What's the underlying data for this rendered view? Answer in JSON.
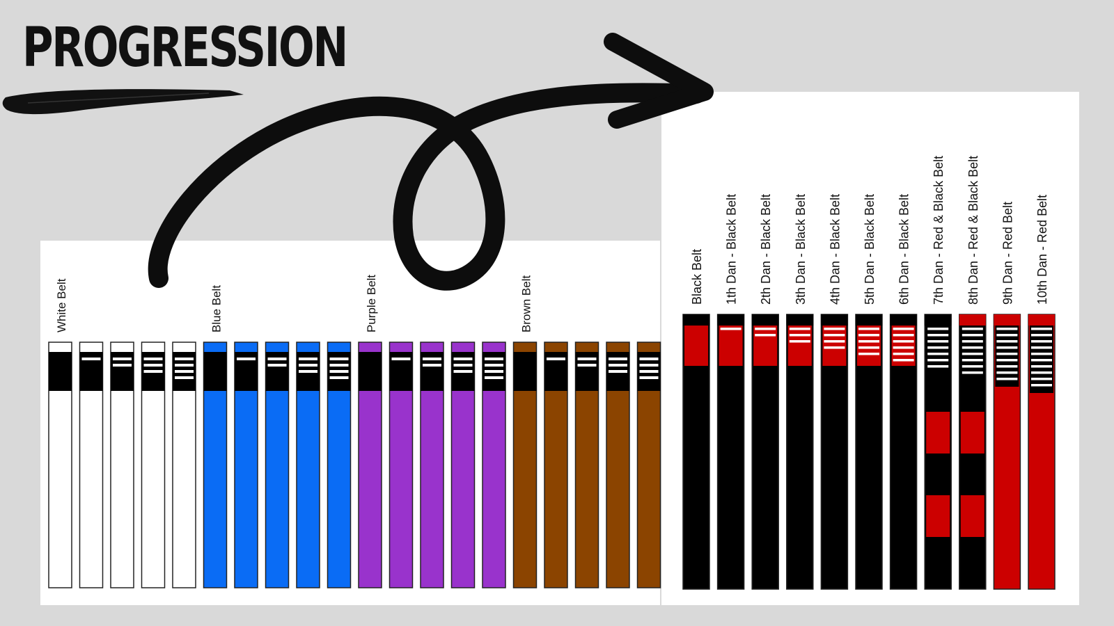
{
  "title": "PROGRESSION",
  "colors": {
    "background": "#d9d9d9",
    "panel": "#ffffff",
    "white": "#ffffff",
    "blue": "#0a6cf5",
    "purple": "#9933cc",
    "brown": "#8b4400",
    "black": "#000000",
    "red": "#cc0000",
    "stripe": "#ffffff",
    "outline": "#222222"
  },
  "kyu_belts": [
    {
      "label": "White Belt",
      "color": "white",
      "bar": "black",
      "top": "white",
      "stripes": 0
    },
    {
      "label": "",
      "color": "white",
      "bar": "black",
      "top": "white",
      "stripes": 1
    },
    {
      "label": "",
      "color": "white",
      "bar": "black",
      "top": "white",
      "stripes": 2
    },
    {
      "label": "",
      "color": "white",
      "bar": "black",
      "top": "white",
      "stripes": 3
    },
    {
      "label": "",
      "color": "white",
      "bar": "black",
      "top": "white",
      "stripes": 4
    },
    {
      "label": "Blue Belt",
      "color": "blue",
      "bar": "black",
      "top": "blue",
      "stripes": 0
    },
    {
      "label": "",
      "color": "blue",
      "bar": "black",
      "top": "blue",
      "stripes": 1
    },
    {
      "label": "",
      "color": "blue",
      "bar": "black",
      "top": "blue",
      "stripes": 2
    },
    {
      "label": "",
      "color": "blue",
      "bar": "black",
      "top": "blue",
      "stripes": 3
    },
    {
      "label": "",
      "color": "blue",
      "bar": "black",
      "top": "blue",
      "stripes": 4
    },
    {
      "label": "Purple Belt",
      "color": "purple",
      "bar": "black",
      "top": "purple",
      "stripes": 0
    },
    {
      "label": "",
      "color": "purple",
      "bar": "black",
      "top": "purple",
      "stripes": 1
    },
    {
      "label": "",
      "color": "purple",
      "bar": "black",
      "top": "purple",
      "stripes": 2
    },
    {
      "label": "",
      "color": "purple",
      "bar": "black",
      "top": "purple",
      "stripes": 3
    },
    {
      "label": "",
      "color": "purple",
      "bar": "black",
      "top": "purple",
      "stripes": 4
    },
    {
      "label": "Brown Belt",
      "color": "brown",
      "bar": "black",
      "top": "brown",
      "stripes": 0
    },
    {
      "label": "",
      "color": "brown",
      "bar": "black",
      "top": "brown",
      "stripes": 1
    },
    {
      "label": "",
      "color": "brown",
      "bar": "black",
      "top": "brown",
      "stripes": 2
    },
    {
      "label": "",
      "color": "brown",
      "bar": "black",
      "top": "brown",
      "stripes": 3
    },
    {
      "label": "",
      "color": "brown",
      "bar": "black",
      "top": "brown",
      "stripes": 4
    }
  ],
  "dan_belts": [
    {
      "label": "Black Belt",
      "color": "black",
      "bar": "red",
      "top": "black",
      "stripes": 0,
      "patches": false
    },
    {
      "label": "1th Dan - Black Belt",
      "color": "black",
      "bar": "red",
      "top": "black",
      "stripes": 1,
      "patches": false
    },
    {
      "label": "2th Dan - Black Belt",
      "color": "black",
      "bar": "red",
      "top": "black",
      "stripes": 2,
      "patches": false
    },
    {
      "label": "3th Dan - Black Belt",
      "color": "black",
      "bar": "red",
      "top": "black",
      "stripes": 3,
      "patches": false
    },
    {
      "label": "4th Dan - Black Belt",
      "color": "black",
      "bar": "red",
      "top": "black",
      "stripes": 4,
      "patches": false
    },
    {
      "label": "5th Dan - Black Belt",
      "color": "black",
      "bar": "red",
      "top": "black",
      "stripes": 5,
      "patches": false
    },
    {
      "label": "6th Dan - Black Belt",
      "color": "black",
      "bar": "red",
      "top": "black",
      "stripes": 6,
      "patches": false
    },
    {
      "label": "7th Dan - Red & Black Belt",
      "color": "black",
      "bar": "black",
      "top": "black",
      "stripes": 7,
      "patches": true
    },
    {
      "label": "8th Dan - Red & Black Belt",
      "color": "black",
      "bar": "black",
      "top": "red",
      "stripes": 8,
      "patches": true
    },
    {
      "label": "9th Dan - Red Belt",
      "color": "red",
      "bar": "black",
      "top": "red",
      "stripes": 9,
      "patches": false
    },
    {
      "label": "10th Dan - Red Belt",
      "color": "red",
      "bar": "black",
      "top": "red",
      "stripes": 10,
      "patches": false
    }
  ]
}
